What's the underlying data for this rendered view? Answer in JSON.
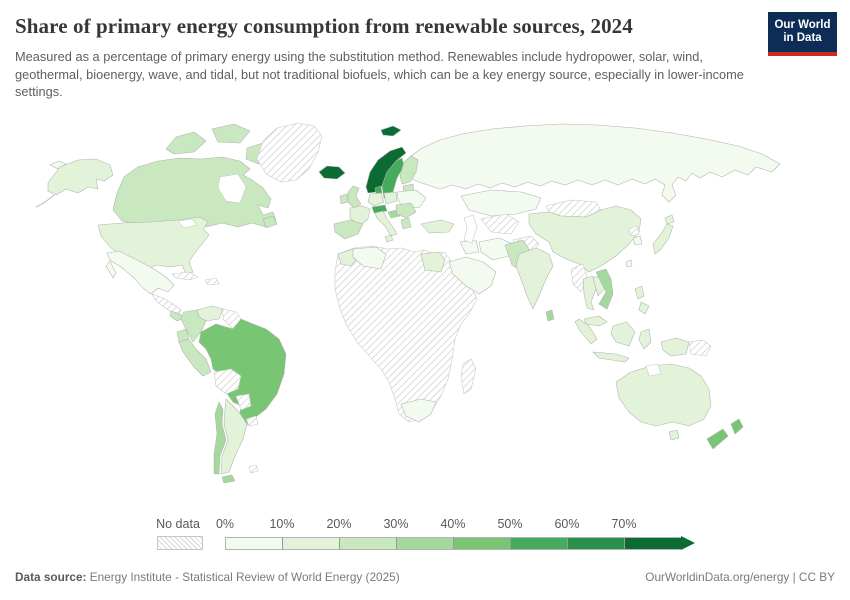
{
  "header": {
    "title": "Share of primary energy consumption from renewable sources, 2024",
    "subtitle": "Measured as a percentage of primary energy using the substitution method. Renewables include hydropower, solar, wind, geothermal, bioenergy, wave, and tidal, but not traditional biofuels, which can be a key energy source, especially in lower-income settings.",
    "logo": {
      "line1": "Our World",
      "line2": "in Data",
      "bg_color": "#0d2d56",
      "accent_color": "#cc2a24"
    }
  },
  "legend": {
    "no_data_label": "No data",
    "tick_labels": [
      "0%",
      "10%",
      "20%",
      "30%",
      "40%",
      "50%",
      "60%",
      "70%"
    ],
    "colors": [
      "#f3faef",
      "#e2f3da",
      "#c9e8c0",
      "#a5d89c",
      "#78c573",
      "#47ab5e",
      "#27914c",
      "#0c6b33"
    ]
  },
  "footer": {
    "datasource_label": "Data source:",
    "datasource_value": "Energy Institute - Statistical Review of World Energy (2025)",
    "credit": "OurWorldinData.org/energy | CC BY"
  },
  "chart_data": {
    "type": "choropleth",
    "title": "Share of primary energy consumption from renewable sources, 2024",
    "unit": "% of primary energy (substitution method)",
    "legend_bins": [
      "0-10%",
      "10-20%",
      "20-30%",
      "30-40%",
      "40-50%",
      "50-60%",
      "60-70%",
      "70%+"
    ],
    "countries": {
      "canada": {
        "label": "Canada",
        "range": "20-30%",
        "bin": 2
      },
      "usa": {
        "label": "United States",
        "range": "10-20%",
        "bin": 1
      },
      "mexico": {
        "label": "Mexico",
        "range": "0-10%",
        "bin": 0
      },
      "costa-rica-panama": {
        "label": "Costa Rica / Panama",
        "range": "20-30%",
        "bin": 2
      },
      "colombia": {
        "label": "Colombia",
        "range": "20-30%",
        "bin": 2
      },
      "venezuela": {
        "label": "Venezuela",
        "range": "10-20%",
        "bin": 1
      },
      "ecuador": {
        "label": "Ecuador",
        "range": "20-30%",
        "bin": 2
      },
      "peru": {
        "label": "Peru",
        "range": "20-30%",
        "bin": 2
      },
      "brazil": {
        "label": "Brazil",
        "range": "40-50%",
        "bin": 4
      },
      "chile": {
        "label": "Chile",
        "range": "30-40%",
        "bin": 3
      },
      "argentina": {
        "label": "Argentina",
        "range": "10-20%",
        "bin": 1
      },
      "iceland": {
        "label": "Iceland",
        "range": "70%+",
        "bin": 7
      },
      "norway": {
        "label": "Norway",
        "range": "70%+",
        "bin": 7
      },
      "svalbard": {
        "label": "Svalbard",
        "range": "70%+",
        "bin": 7
      },
      "sweden": {
        "label": "Sweden",
        "range": "50-60%",
        "bin": 5
      },
      "denmark": {
        "label": "Denmark",
        "range": "50-60%",
        "bin": 5
      },
      "finland": {
        "label": "Finland",
        "range": "20-30%",
        "bin": 2
      },
      "baltics": {
        "label": "Baltic states",
        "range": "20-30%",
        "bin": 2
      },
      "uk": {
        "label": "United Kingdom",
        "range": "20-30%",
        "bin": 2
      },
      "ireland": {
        "label": "Ireland",
        "range": "20-30%",
        "bin": 2
      },
      "france": {
        "label": "France",
        "range": "10-20%",
        "bin": 1
      },
      "germany": {
        "label": "Germany",
        "range": "10-20%",
        "bin": 1
      },
      "poland": {
        "label": "Poland",
        "range": "10-20%",
        "bin": 1
      },
      "ukraine": {
        "label": "Ukraine",
        "range": "0-10%",
        "bin": 0
      },
      "iberia": {
        "label": "Spain / Portugal",
        "range": "20-30%",
        "bin": 2
      },
      "alps": {
        "label": "Austria / Switzerland",
        "range": "50-60%",
        "bin": 5
      },
      "croatia-slovenia": {
        "label": "Croatia / Slovenia",
        "range": "30-40%",
        "bin": 3
      },
      "italy": {
        "label": "Italy",
        "range": "10-20%",
        "bin": 1
      },
      "balkans": {
        "label": "Romania / Balkans",
        "range": "20-30%",
        "bin": 2
      },
      "greece": {
        "label": "Greece",
        "range": "20-30%",
        "bin": 2
      },
      "turkey": {
        "label": "Turkey",
        "range": "10-20%",
        "bin": 1
      },
      "russia": {
        "label": "Russia",
        "range": "0-10%",
        "bin": 0
      },
      "kazakhstan": {
        "label": "Kazakhstan",
        "range": "0-10%",
        "bin": 0
      },
      "iraq-syria": {
        "label": "Iraq / Syria",
        "range": "0-10%",
        "bin": 0
      },
      "saudi-arabia": {
        "label": "Saudi Arabia",
        "range": "0-10%",
        "bin": 0
      },
      "iran": {
        "label": "Iran",
        "range": "0-10%",
        "bin": 0
      },
      "pakistan": {
        "label": "Pakistan",
        "range": "20-30%",
        "bin": 2
      },
      "india": {
        "label": "India",
        "range": "10-20%",
        "bin": 1
      },
      "sri-lanka": {
        "label": "Sri Lanka",
        "range": "30-40%",
        "bin": 3
      },
      "china": {
        "label": "China",
        "range": "10-20%",
        "bin": 1
      },
      "south-korea": {
        "label": "South Korea",
        "range": "0-10%",
        "bin": 0
      },
      "taiwan": {
        "label": "Taiwan",
        "range": "0-10%",
        "bin": 0
      },
      "japan": {
        "label": "Japan",
        "range": "10-20%",
        "bin": 1
      },
      "thailand": {
        "label": "Thailand",
        "range": "10-20%",
        "bin": 1
      },
      "laos-cambodia": {
        "label": "Laos / Cambodia",
        "range": "10-20%",
        "bin": 1
      },
      "vietnam": {
        "label": "Vietnam",
        "range": "30-40%",
        "bin": 3
      },
      "malaysia": {
        "label": "Malaysia",
        "range": "10-20%",
        "bin": 1
      },
      "indonesia": {
        "label": "Indonesia",
        "range": "10-20%",
        "bin": 1
      },
      "philippines": {
        "label": "Philippines",
        "range": "10-20%",
        "bin": 1
      },
      "morocco": {
        "label": "Morocco",
        "range": "10-20%",
        "bin": 1
      },
      "algeria": {
        "label": "Algeria",
        "range": "0-10%",
        "bin": 0
      },
      "egypt": {
        "label": "Egypt",
        "range": "10-20%",
        "bin": 1
      },
      "south-africa": {
        "label": "South Africa",
        "range": "0-10%",
        "bin": 0
      },
      "australia": {
        "label": "Australia",
        "range": "10-20%",
        "bin": 1
      },
      "new-zealand": {
        "label": "New Zealand",
        "range": "40-50%",
        "bin": 4
      }
    },
    "no_data": [
      "greenland",
      "cuba",
      "hispaniola",
      "central-america",
      "guyanas",
      "bolivia",
      "paraguay",
      "uruguay",
      "falklands",
      "africa-main",
      "madagascar",
      "central-asia",
      "afghanistan",
      "mongolia",
      "myanmar",
      "north-korea",
      "papua-new-guinea"
    ]
  }
}
